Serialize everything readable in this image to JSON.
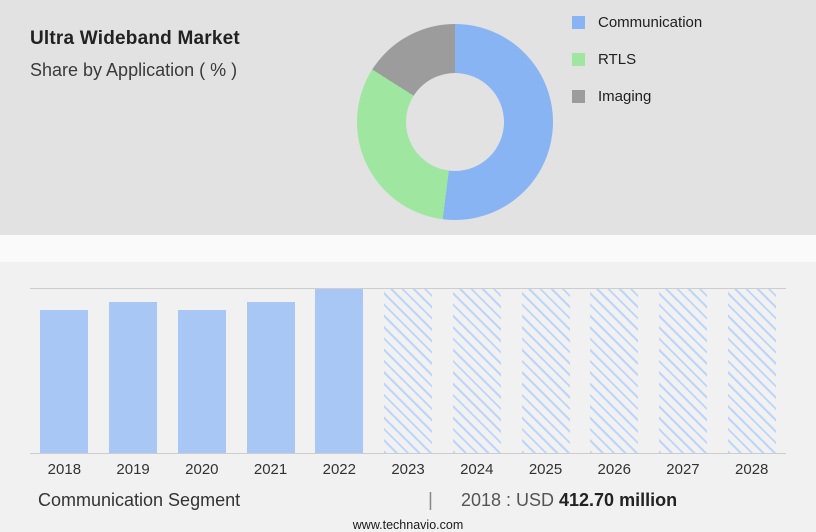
{
  "header": {
    "title": "Ultra Wideband Market",
    "subtitle": "Share by Application ( % )"
  },
  "colors": {
    "communication": "#88b4f4",
    "rtls": "#9fe6a0",
    "imaging": "#9c9c9c",
    "bar_fill": "#a9c7f5",
    "hatch_line": "#bdd5f8",
    "top_bg": "#e2e2e2",
    "bottom_bg": "#f1f1f1"
  },
  "chart_data": [
    {
      "type": "pie",
      "title": "Share by Application ( % )",
      "labels": [
        "Communication",
        "RTLS",
        "Imaging"
      ],
      "values": [
        52,
        32,
        16
      ],
      "colors": [
        "#88b4f4",
        "#9fe6a0",
        "#9c9c9c"
      ],
      "donut": true,
      "legend_position": "right"
    },
    {
      "type": "bar",
      "categories": [
        "2018",
        "2019",
        "2020",
        "2021",
        "2022",
        "2023",
        "2024",
        "2025",
        "2026",
        "2027",
        "2028"
      ],
      "values": [
        87,
        92,
        87,
        92,
        100,
        100,
        100,
        100,
        100,
        100,
        100
      ],
      "forecast_categories": [
        "2023",
        "2024",
        "2025",
        "2026",
        "2027",
        "2028"
      ],
      "xlabel": "",
      "ylabel": "",
      "note": "No y-axis labels shown; values are relative bar heights as % of tallest bar. 2023-2028 are forecast bars drawn with diagonal hatching.",
      "annotation": "2018 : USD 412.70 million"
    }
  ],
  "footer": {
    "segment_label": "Communication Segment",
    "separator": "|",
    "value_prefix": "2018 : USD",
    "value_bold": "412.70 million",
    "website": "www.technavio.com"
  }
}
